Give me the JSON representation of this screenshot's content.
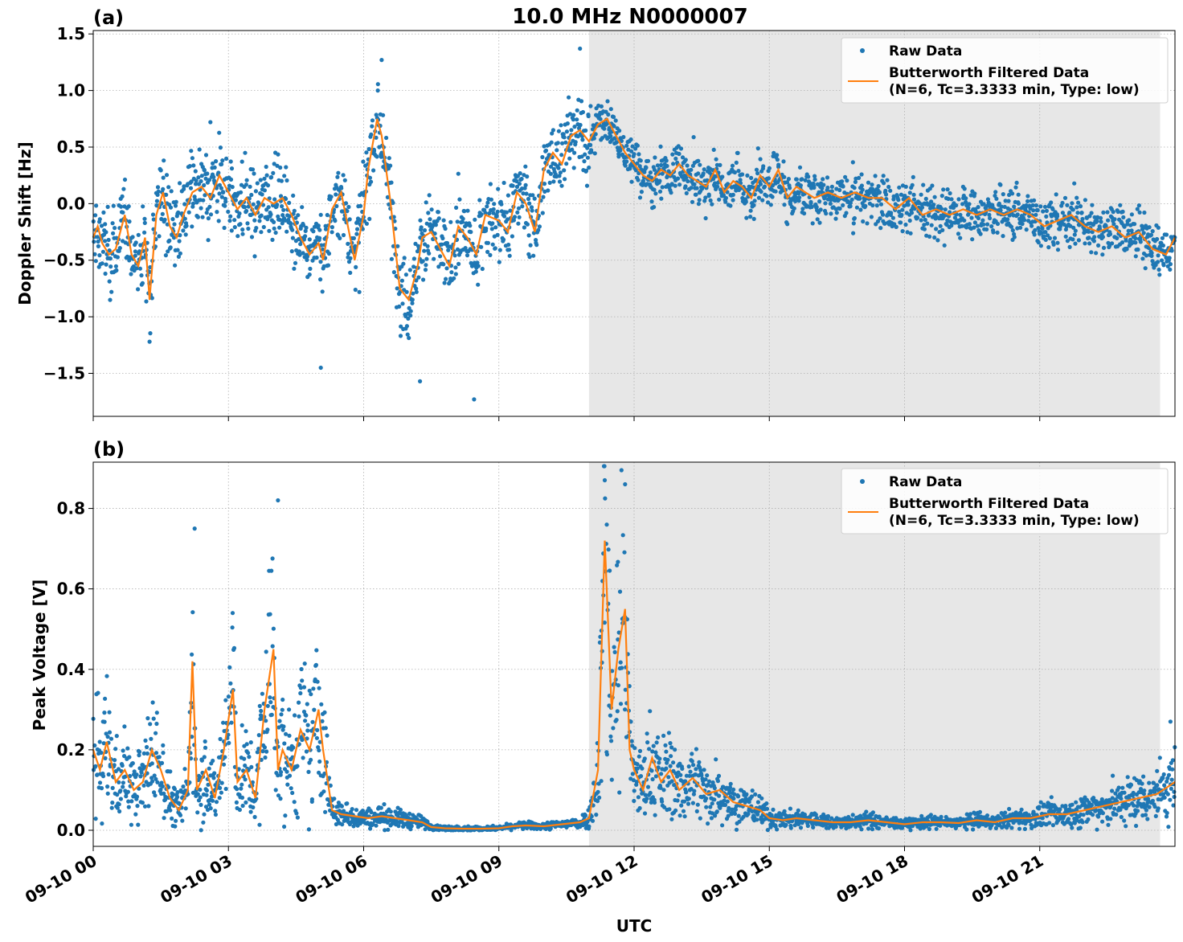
{
  "figure": {
    "title": "10.0 MHz N0000007",
    "xlabel": "UTC",
    "x_ticks": [
      "09-10 00",
      "09-10 03",
      "09-10 06",
      "09-10 09",
      "09-10 12",
      "09-10 15",
      "09-10 18",
      "09-10 21"
    ]
  },
  "colors": {
    "raw": "#1f77b4",
    "filtered": "#ff7f0e",
    "shade": "#e7e7e7",
    "grid": "#b0b0b0"
  },
  "legend": {
    "raw_label": "Raw Data",
    "filtered_label_line1": "Butterworth Filtered Data",
    "filtered_label_line2": "(N=6, Tc=3.3333 min, Type: low)",
    "placement": "top-right"
  },
  "chart_data": [
    {
      "type": "scatter",
      "panel_label": "(a)",
      "ylabel": "Doppler Shift [Hz]",
      "ylim": [
        -1.88,
        1.53
      ],
      "y_ticks": [
        "1.5",
        "1.0",
        "0.5",
        "0.0",
        "−0.5",
        "−1.0",
        "−1.5"
      ],
      "y_tick_values": [
        1.5,
        1.0,
        0.5,
        0.0,
        -0.5,
        -1.0,
        -1.5
      ],
      "xlim_hours": [
        0,
        24
      ],
      "grid": true,
      "shaded_interval_hours": [
        11.0,
        23.67
      ],
      "series": [
        {
          "name": "Butterworth Filtered Data",
          "x_hours": [
            0,
            0.1,
            0.2,
            0.35,
            0.5,
            0.7,
            0.85,
            1.0,
            1.15,
            1.25,
            1.4,
            1.55,
            1.7,
            1.85,
            2.0,
            2.2,
            2.4,
            2.6,
            2.8,
            3.0,
            3.2,
            3.4,
            3.6,
            3.8,
            4.0,
            4.2,
            4.4,
            4.6,
            4.8,
            5.0,
            5.1,
            5.3,
            5.5,
            5.7,
            5.8,
            6.0,
            6.1,
            6.3,
            6.4,
            6.5,
            6.6,
            6.8,
            7.0,
            7.2,
            7.3,
            7.5,
            7.7,
            7.9,
            8.1,
            8.3,
            8.5,
            8.7,
            9.0,
            9.2,
            9.4,
            9.6,
            9.8,
            10.0,
            10.2,
            10.4,
            10.6,
            10.8,
            11.0,
            11.2,
            11.4,
            11.6,
            11.8,
            12.0,
            12.2,
            12.4,
            12.6,
            12.8,
            13.0,
            13.2,
            13.4,
            13.6,
            13.8,
            14.0,
            14.2,
            14.4,
            14.6,
            14.8,
            15.0,
            15.2,
            15.4,
            15.6,
            15.8,
            16.0,
            16.3,
            16.6,
            16.9,
            17.2,
            17.5,
            17.8,
            18.1,
            18.4,
            18.7,
            19.0,
            19.3,
            19.6,
            19.9,
            20.2,
            20.5,
            20.8,
            21.1,
            21.4,
            21.7,
            22.0,
            22.3,
            22.6,
            22.9,
            23.2,
            23.5,
            23.8,
            24.0
          ],
          "values": [
            -0.3,
            -0.2,
            -0.35,
            -0.45,
            -0.4,
            -0.1,
            -0.45,
            -0.55,
            -0.3,
            -0.85,
            -0.1,
            0.1,
            -0.2,
            -0.3,
            -0.1,
            0.1,
            0.15,
            0.05,
            0.25,
            0.1,
            -0.05,
            0.05,
            -0.1,
            0.05,
            0.0,
            0.05,
            -0.1,
            -0.3,
            -0.45,
            -0.35,
            -0.5,
            -0.05,
            0.1,
            -0.3,
            -0.5,
            -0.1,
            0.3,
            0.75,
            0.6,
            0.3,
            0.0,
            -0.75,
            -0.85,
            -0.55,
            -0.3,
            -0.25,
            -0.4,
            -0.55,
            -0.2,
            -0.3,
            -0.45,
            -0.1,
            -0.15,
            -0.25,
            0.1,
            0.0,
            -0.25,
            0.3,
            0.45,
            0.35,
            0.6,
            0.65,
            0.55,
            0.7,
            0.75,
            0.6,
            0.45,
            0.35,
            0.25,
            0.2,
            0.3,
            0.25,
            0.35,
            0.25,
            0.2,
            0.15,
            0.3,
            0.1,
            0.2,
            0.15,
            0.05,
            0.25,
            0.15,
            0.3,
            0.05,
            0.15,
            0.1,
            0.05,
            0.1,
            0.05,
            0.1,
            0.05,
            0.05,
            -0.05,
            0.05,
            -0.1,
            -0.05,
            -0.1,
            -0.05,
            -0.1,
            -0.05,
            -0.1,
            -0.05,
            -0.1,
            -0.2,
            -0.15,
            -0.1,
            -0.2,
            -0.25,
            -0.2,
            -0.3,
            -0.25,
            -0.4,
            -0.45,
            -0.3
          ]
        },
        {
          "name": "Raw Data",
          "spread_hz": 0.3,
          "outliers": [
            {
              "x_hours": 5.05,
              "y": -1.45
            },
            {
              "x_hours": 6.4,
              "y": 1.27
            },
            {
              "x_hours": 7.25,
              "y": -1.57
            },
            {
              "x_hours": 8.45,
              "y": -1.73
            },
            {
              "x_hours": 10.8,
              "y": 1.37
            },
            {
              "x_hours": 1.25,
              "y": -1.22
            },
            {
              "x_hours": 2.6,
              "y": 0.72
            }
          ]
        }
      ]
    },
    {
      "type": "scatter",
      "panel_label": "(b)",
      "ylabel": "Peak Voltage [V]",
      "ylim": [
        -0.04,
        0.915
      ],
      "y_ticks": [
        "0.8",
        "0.6",
        "0.4",
        "0.2",
        "0.0"
      ],
      "y_tick_values": [
        0.8,
        0.6,
        0.4,
        0.2,
        0.0
      ],
      "xlim_hours": [
        0,
        24
      ],
      "grid": true,
      "shaded_interval_hours": [
        11.0,
        23.67
      ],
      "series": [
        {
          "name": "Butterworth Filtered Data",
          "x_hours": [
            0,
            0.15,
            0.3,
            0.5,
            0.7,
            0.9,
            1.1,
            1.3,
            1.5,
            1.7,
            1.9,
            2.1,
            2.2,
            2.3,
            2.5,
            2.7,
            2.9,
            3.1,
            3.2,
            3.4,
            3.6,
            3.8,
            4.0,
            4.1,
            4.2,
            4.4,
            4.6,
            4.8,
            5.0,
            5.1,
            5.3,
            5.5,
            5.8,
            6.1,
            6.4,
            6.7,
            7.0,
            7.3,
            7.5,
            7.8,
            8.2,
            8.6,
            9.0,
            9.3,
            9.6,
            10.0,
            10.4,
            10.8,
            11.0,
            11.2,
            11.35,
            11.5,
            11.65,
            11.8,
            11.9,
            12.0,
            12.2,
            12.4,
            12.6,
            12.8,
            13.0,
            13.3,
            13.6,
            13.9,
            14.2,
            14.5,
            14.8,
            15.0,
            15.3,
            15.6,
            16.0,
            16.4,
            16.8,
            17.2,
            17.6,
            18.0,
            18.4,
            18.8,
            19.2,
            19.6,
            20.0,
            20.4,
            20.8,
            21.2,
            21.6,
            22.0,
            22.4,
            22.8,
            23.2,
            23.6,
            24.0
          ],
          "values": [
            0.2,
            0.15,
            0.22,
            0.12,
            0.15,
            0.1,
            0.12,
            0.2,
            0.15,
            0.08,
            0.05,
            0.1,
            0.42,
            0.1,
            0.15,
            0.08,
            0.2,
            0.35,
            0.12,
            0.15,
            0.08,
            0.3,
            0.45,
            0.15,
            0.2,
            0.15,
            0.25,
            0.2,
            0.3,
            0.2,
            0.05,
            0.04,
            0.035,
            0.03,
            0.035,
            0.03,
            0.025,
            0.02,
            0.008,
            0.005,
            0.004,
            0.004,
            0.005,
            0.01,
            0.012,
            0.01,
            0.015,
            0.02,
            0.03,
            0.15,
            0.72,
            0.3,
            0.45,
            0.55,
            0.2,
            0.15,
            0.1,
            0.18,
            0.12,
            0.15,
            0.1,
            0.13,
            0.09,
            0.1,
            0.07,
            0.06,
            0.05,
            0.03,
            0.025,
            0.03,
            0.025,
            0.02,
            0.02,
            0.025,
            0.02,
            0.015,
            0.02,
            0.02,
            0.018,
            0.025,
            0.02,
            0.03,
            0.03,
            0.04,
            0.04,
            0.05,
            0.06,
            0.07,
            0.08,
            0.09,
            0.12
          ]
        },
        {
          "name": "Raw Data",
          "outliers": [
            {
              "x_hours": 2.25,
              "y": 0.75
            },
            {
              "x_hours": 4.1,
              "y": 0.82
            },
            {
              "x_hours": 11.35,
              "y": 0.87
            },
            {
              "x_hours": 11.8,
              "y": 0.86
            },
            {
              "x_hours": 23.9,
              "y": 0.27
            }
          ]
        }
      ]
    }
  ]
}
